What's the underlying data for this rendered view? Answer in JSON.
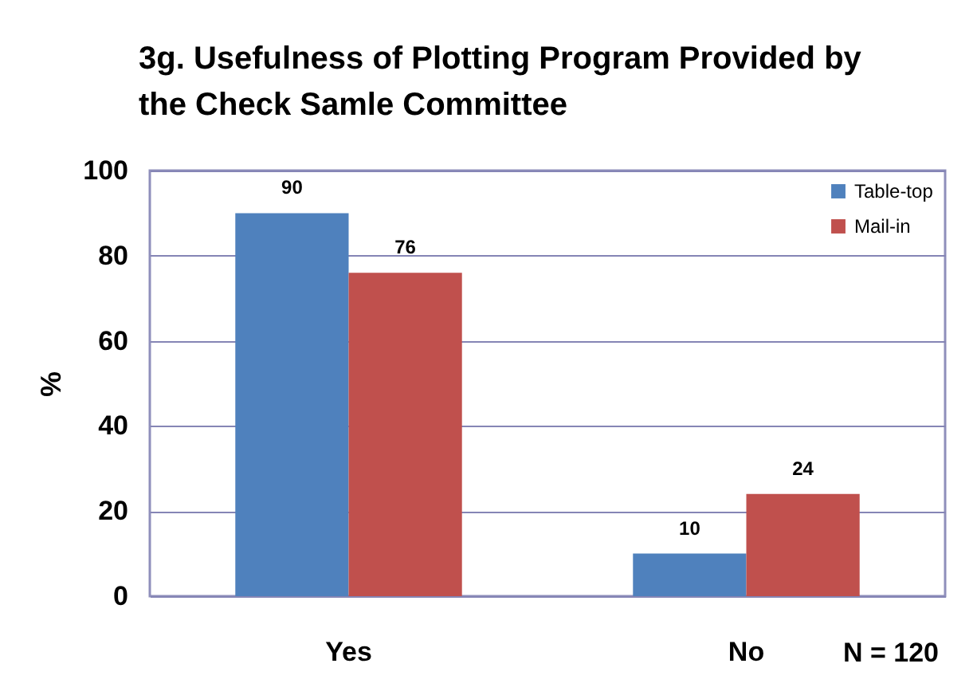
{
  "chart_data": {
    "type": "bar",
    "title": "3g. Usefulness of Plotting Program Provided by the Check Samle Committee",
    "ylabel": "%",
    "categories": [
      "Yes",
      "No"
    ],
    "series": [
      {
        "name": "Table-top",
        "color": "#4f81bd",
        "values": [
          90,
          10
        ]
      },
      {
        "name": "Mail-in",
        "color": "#c0504d",
        "values": [
          76,
          24
        ]
      }
    ],
    "ylim": [
      0,
      100
    ],
    "yticks": [
      0,
      20,
      40,
      60,
      80,
      100
    ],
    "grid": "y",
    "legend": "top right",
    "data_labels": true,
    "annotations": [
      "N = 120"
    ]
  }
}
